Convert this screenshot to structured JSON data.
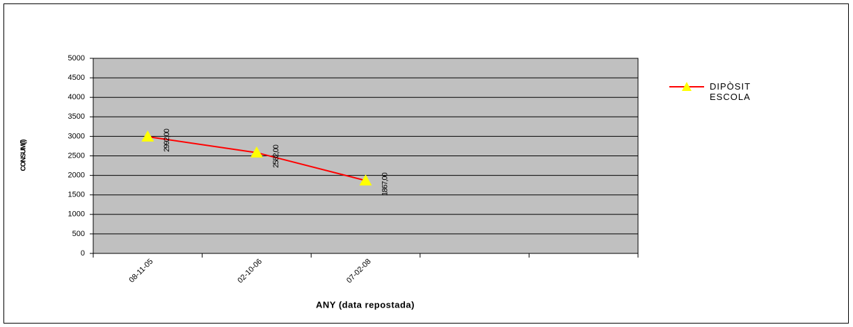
{
  "chart_data": {
    "type": "line",
    "x_label": "ANY (data repostada)",
    "y_label": "CONSUM(l)",
    "categories": [
      "08-11-05",
      "02-10-06",
      "07-02-08",
      null,
      null
    ],
    "series": [
      {
        "name": "DIPÒSIT ESCOLA",
        "color": "#ff0000",
        "marker_color": "#ffff00",
        "values": [
          2992,
          2582,
          1867,
          null,
          null
        ],
        "value_labels": [
          "2992,00",
          "2582,00",
          "1867,00",
          null,
          null
        ]
      }
    ],
    "ylim": [
      0,
      5000
    ],
    "yticks": [
      0,
      500,
      1000,
      1500,
      2000,
      2500,
      3000,
      3500,
      4000,
      4500,
      5000
    ],
    "grid": true,
    "legend": "right"
  }
}
